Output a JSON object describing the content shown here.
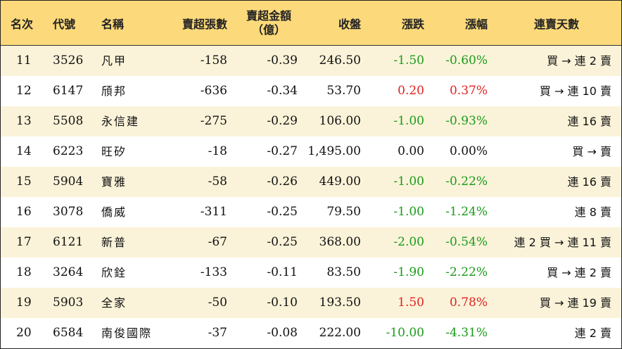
{
  "header": {
    "rank": "名次",
    "code": "代號",
    "name": "名稱",
    "net_sell_lots": "賣超張數",
    "net_sell_amount_line1": "賣超金額",
    "net_sell_amount_line2": "（億）",
    "close": "收盤",
    "change": "漲跌",
    "change_pct": "漲幅",
    "streak": "連賣天數"
  },
  "rows": [
    {
      "rank": "11",
      "code": "3526",
      "name": "凡甲",
      "lots": "-158",
      "amount": "-0.39",
      "close": "246.50",
      "change": "-1.50",
      "pct": "-0.60%",
      "dir": "neg",
      "streak": "買 → 連 2 賣"
    },
    {
      "rank": "12",
      "code": "6147",
      "name": "頎邦",
      "lots": "-636",
      "amount": "-0.34",
      "close": "53.70",
      "change": "0.20",
      "pct": "0.37%",
      "dir": "pos",
      "streak": "買 → 連 10 賣"
    },
    {
      "rank": "13",
      "code": "5508",
      "name": "永信建",
      "lots": "-275",
      "amount": "-0.29",
      "close": "106.00",
      "change": "-1.00",
      "pct": "-0.93%",
      "dir": "neg",
      "streak": "連 16 賣"
    },
    {
      "rank": "14",
      "code": "6223",
      "name": "旺矽",
      "lots": "-18",
      "amount": "-0.27",
      "close": "1,495.00",
      "change": "0.00",
      "pct": "0.00%",
      "dir": "flat",
      "streak": "買 → 賣"
    },
    {
      "rank": "15",
      "code": "5904",
      "name": "寶雅",
      "lots": "-58",
      "amount": "-0.26",
      "close": "449.00",
      "change": "-1.00",
      "pct": "-0.22%",
      "dir": "neg",
      "streak": "連 16 賣"
    },
    {
      "rank": "16",
      "code": "3078",
      "name": "僑威",
      "lots": "-311",
      "amount": "-0.25",
      "close": "79.50",
      "change": "-1.00",
      "pct": "-1.24%",
      "dir": "neg",
      "streak": "連 8 賣"
    },
    {
      "rank": "17",
      "code": "6121",
      "name": "新普",
      "lots": "-67",
      "amount": "-0.25",
      "close": "368.00",
      "change": "-2.00",
      "pct": "-0.54%",
      "dir": "neg",
      "streak": "連 2 買 → 連 11 賣"
    },
    {
      "rank": "18",
      "code": "3264",
      "name": "欣銓",
      "lots": "-133",
      "amount": "-0.11",
      "close": "83.50",
      "change": "-1.90",
      "pct": "-2.22%",
      "dir": "neg",
      "streak": "買 → 連 2 賣"
    },
    {
      "rank": "19",
      "code": "5903",
      "name": "全家",
      "lots": "-50",
      "amount": "-0.10",
      "close": "193.50",
      "change": "1.50",
      "pct": "0.78%",
      "dir": "pos",
      "streak": "買 → 連 19 賣"
    },
    {
      "rank": "20",
      "code": "6584",
      "name": "南俊國際",
      "lots": "-37",
      "amount": "-0.08",
      "close": "222.00",
      "change": "-10.00",
      "pct": "-4.31%",
      "dir": "neg",
      "streak": "連 2 賣"
    }
  ],
  "colors": {
    "header_bg": "#fcd97a",
    "stripe_bg": "#fbf3d9",
    "down": "#1a9a1a",
    "up": "#e02020"
  }
}
